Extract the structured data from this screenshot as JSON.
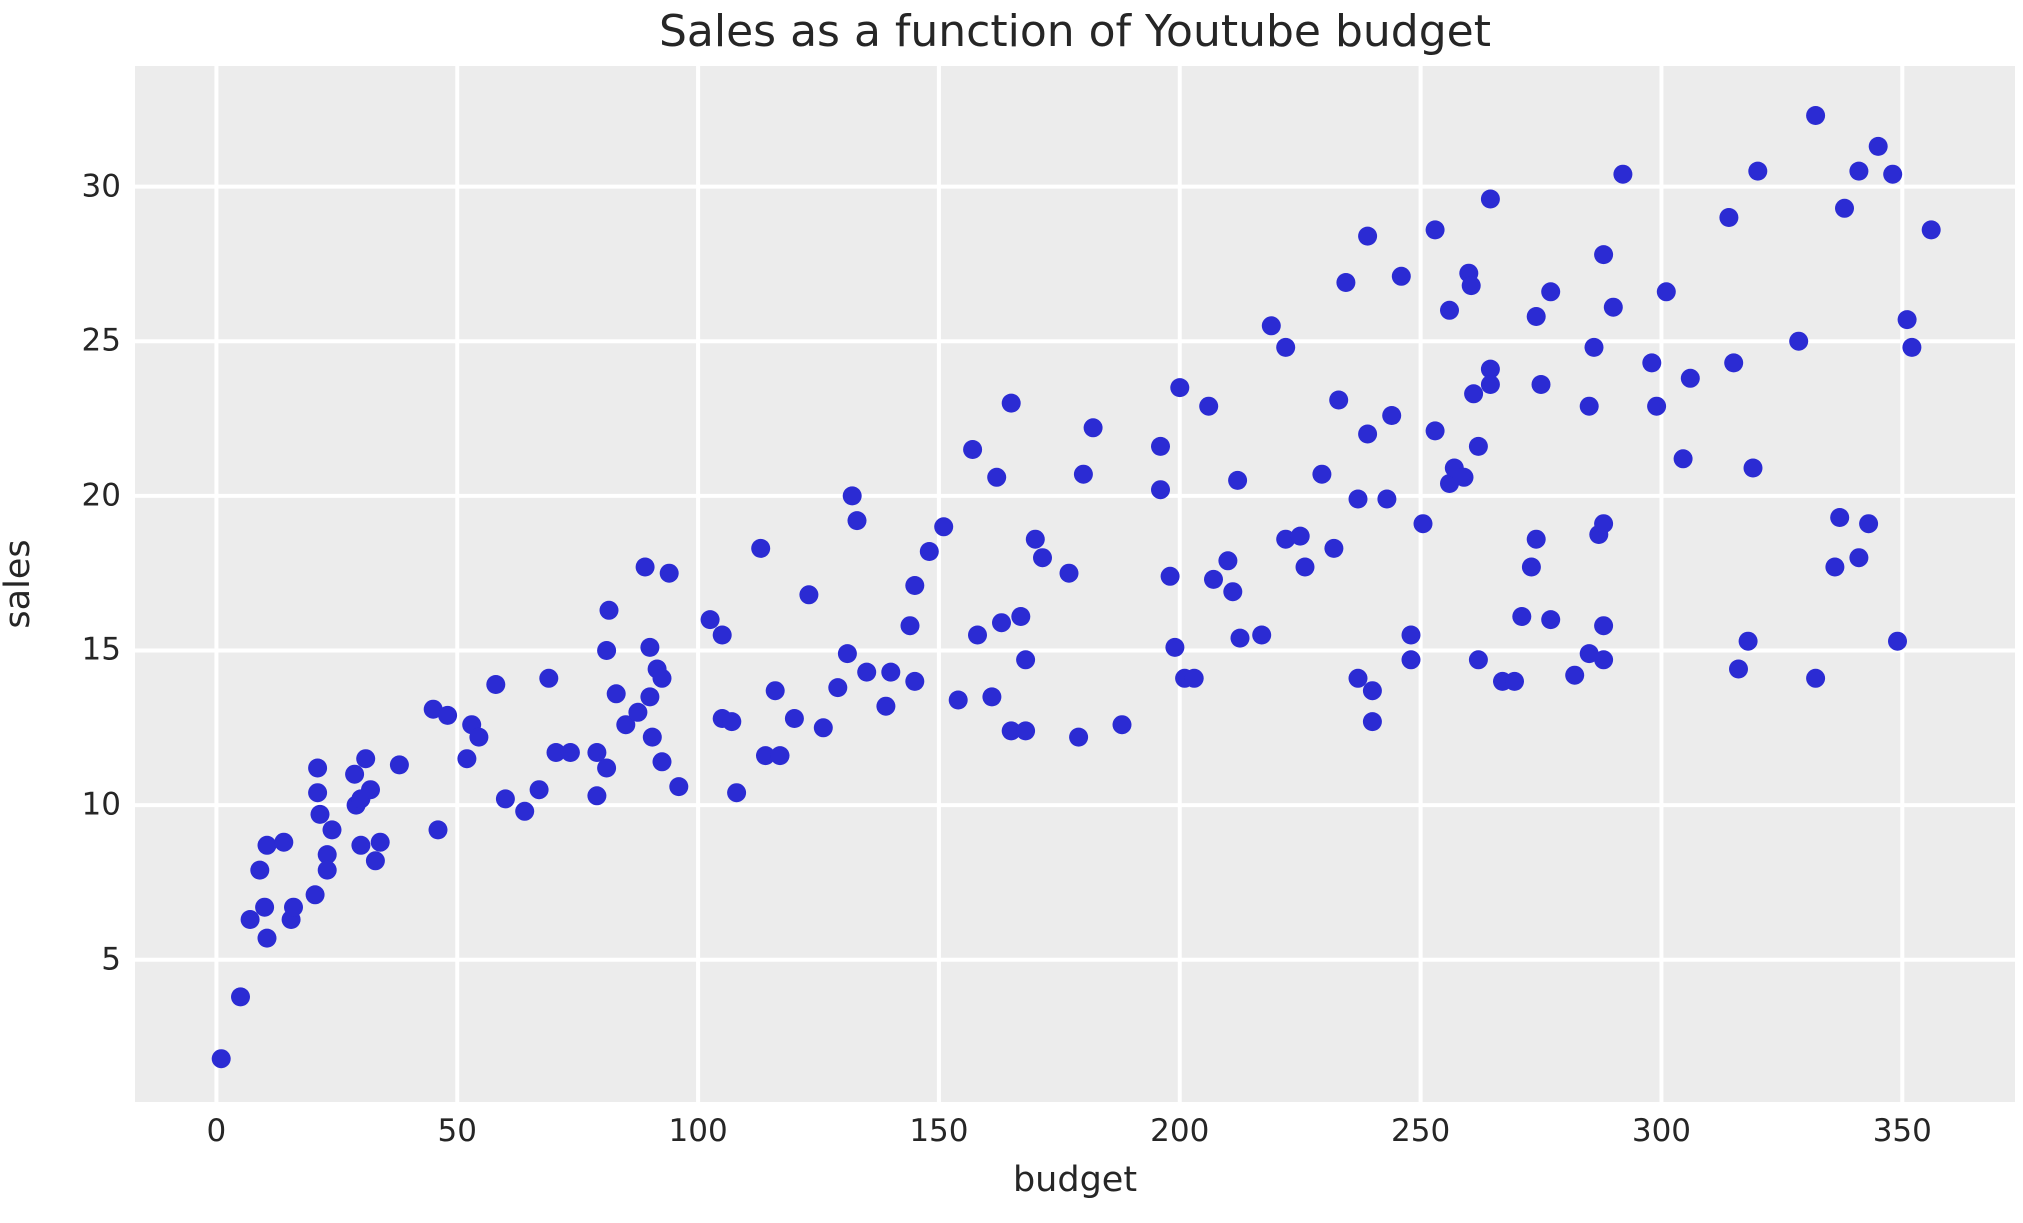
{
  "title": "Sales as a function of Youtube budget",
  "colors": {
    "plot_background": "#ececec",
    "gridline": "#ffffff",
    "marker": "#2b2bd3",
    "text": "#262626",
    "figure_background": "#ffffff"
  },
  "chart_data": {
    "type": "scatter",
    "title": "Sales as a function of Youtube budget",
    "xlabel": "budget",
    "ylabel": "sales",
    "xlim": [
      -16.9,
      373.4
    ],
    "ylim": [
      0.4,
      33.9
    ],
    "xticks": [
      0,
      50,
      100,
      150,
      200,
      250,
      300,
      350
    ],
    "yticks": [
      5,
      10,
      15,
      20,
      25,
      30
    ],
    "grid": true,
    "legend_position": "none",
    "marker_color": "#2b2bd3",
    "marker_radius_px": 9.5,
    "points": [
      [
        1,
        1.8
      ],
      [
        5,
        3.8
      ],
      [
        7,
        6.3
      ],
      [
        9,
        7.9
      ],
      [
        10,
        6.7
      ],
      [
        10.5,
        5.7
      ],
      [
        10.5,
        8.7
      ],
      [
        14,
        8.8
      ],
      [
        15.5,
        6.3
      ],
      [
        16,
        6.7
      ],
      [
        20.5,
        7.1
      ],
      [
        21,
        10.4
      ],
      [
        21,
        11.2
      ],
      [
        21.5,
        9.7
      ],
      [
        23,
        8.4
      ],
      [
        23,
        7.9
      ],
      [
        24,
        9.2
      ],
      [
        28.7,
        11
      ],
      [
        29,
        10
      ],
      [
        30,
        10.2
      ],
      [
        30,
        8.7
      ],
      [
        31,
        11.5
      ],
      [
        32,
        10.5
      ],
      [
        33,
        8.2
      ],
      [
        34,
        8.8
      ],
      [
        38,
        11.3
      ],
      [
        45,
        13.1
      ],
      [
        46,
        9.2
      ],
      [
        48,
        12.9
      ],
      [
        52,
        11.5
      ],
      [
        53,
        12.6
      ],
      [
        54.5,
        12.2
      ],
      [
        58,
        13.9
      ],
      [
        60,
        10.2
      ],
      [
        64,
        9.8
      ],
      [
        67,
        10.5
      ],
      [
        69,
        14.1
      ],
      [
        70.5,
        11.7
      ],
      [
        73.5,
        11.7
      ],
      [
        79,
        11.7
      ],
      [
        79,
        10.3
      ],
      [
        81,
        11.2
      ],
      [
        81,
        15
      ],
      [
        81.5,
        16.3
      ],
      [
        83,
        13.6
      ],
      [
        85,
        12.6
      ],
      [
        87.5,
        13
      ],
      [
        89,
        17.7
      ],
      [
        90,
        15.1
      ],
      [
        90,
        13.5
      ],
      [
        90.5,
        12.2
      ],
      [
        91.5,
        14.4
      ],
      [
        92.5,
        14.1
      ],
      [
        92.5,
        11.4
      ],
      [
        94,
        17.5
      ],
      [
        96,
        10.6
      ],
      [
        102.5,
        16
      ],
      [
        105,
        15.5
      ],
      [
        105,
        12.8
      ],
      [
        107,
        12.7
      ],
      [
        108,
        10.4
      ],
      [
        113,
        18.3
      ],
      [
        114,
        11.6
      ],
      [
        116,
        13.7
      ],
      [
        117,
        11.6
      ],
      [
        120,
        12.8
      ],
      [
        123,
        16.8
      ],
      [
        126,
        12.5
      ],
      [
        129,
        13.8
      ],
      [
        131,
        14.9
      ],
      [
        132,
        20
      ],
      [
        133,
        19.2
      ],
      [
        135,
        14.3
      ],
      [
        139,
        13.2
      ],
      [
        140,
        14.3
      ],
      [
        144,
        15.8
      ],
      [
        145,
        17.1
      ],
      [
        145,
        14
      ],
      [
        148,
        18.2
      ],
      [
        151,
        19
      ],
      [
        154,
        13.4
      ],
      [
        157,
        21.5
      ],
      [
        158,
        15.5
      ],
      [
        161,
        13.5
      ],
      [
        162,
        20.6
      ],
      [
        163,
        15.9
      ],
      [
        165,
        23
      ],
      [
        165,
        12.4
      ],
      [
        167,
        16.1
      ],
      [
        168,
        14.7
      ],
      [
        168,
        12.4
      ],
      [
        170,
        18.6
      ],
      [
        171.5,
        18
      ],
      [
        177,
        17.5
      ],
      [
        179,
        12.2
      ],
      [
        180,
        20.7
      ],
      [
        182,
        22.2
      ],
      [
        188,
        12.6
      ],
      [
        196,
        21.6
      ],
      [
        196,
        20.2
      ],
      [
        198,
        17.4
      ],
      [
        199,
        15.1
      ],
      [
        200,
        23.5
      ],
      [
        201,
        14.1
      ],
      [
        203,
        14.1
      ],
      [
        206,
        22.9
      ],
      [
        207,
        17.3
      ],
      [
        210,
        17.9
      ],
      [
        211,
        16.9
      ],
      [
        212,
        20.5
      ],
      [
        212.5,
        15.4
      ],
      [
        217,
        15.5
      ],
      [
        219,
        25.5
      ],
      [
        222,
        24.8
      ],
      [
        222,
        18.6
      ],
      [
        225,
        18.7
      ],
      [
        226,
        17.7
      ],
      [
        229.5,
        20.7
      ],
      [
        232,
        18.3
      ],
      [
        233,
        23.1
      ],
      [
        234.5,
        26.9
      ],
      [
        237,
        19.9
      ],
      [
        237,
        14.1
      ],
      [
        239,
        28.4
      ],
      [
        239,
        22
      ],
      [
        240,
        13.7
      ],
      [
        240,
        12.7
      ],
      [
        243,
        19.9
      ],
      [
        244,
        22.6
      ],
      [
        246,
        27.1
      ],
      [
        248,
        15.5
      ],
      [
        248,
        14.7
      ],
      [
        250.5,
        19.1
      ],
      [
        253,
        28.6
      ],
      [
        253,
        22.1
      ],
      [
        256,
        26
      ],
      [
        256,
        20.4
      ],
      [
        257,
        20.9
      ],
      [
        259,
        20.6
      ],
      [
        260,
        27.2
      ],
      [
        260.5,
        26.8
      ],
      [
        261,
        23.3
      ],
      [
        262,
        21.6
      ],
      [
        262,
        14.7
      ],
      [
        264.5,
        29.6
      ],
      [
        264.5,
        24.1
      ],
      [
        264.5,
        23.6
      ],
      [
        267,
        14
      ],
      [
        269.5,
        14
      ],
      [
        271,
        16.1
      ],
      [
        273,
        17.7
      ],
      [
        274,
        25.8
      ],
      [
        274,
        18.6
      ],
      [
        275,
        23.6
      ],
      [
        277,
        26.6
      ],
      [
        277,
        16
      ],
      [
        282,
        14.2
      ],
      [
        285,
        22.9
      ],
      [
        285,
        14.9
      ],
      [
        286,
        24.8
      ],
      [
        287,
        18.75
      ],
      [
        288,
        27.8
      ],
      [
        288,
        19.1
      ],
      [
        288,
        15.8
      ],
      [
        288,
        14.7
      ],
      [
        290,
        26.1
      ],
      [
        292,
        30.4
      ],
      [
        298,
        24.3
      ],
      [
        299,
        22.9
      ],
      [
        301,
        26.6
      ],
      [
        304.5,
        21.2
      ],
      [
        306,
        23.8
      ],
      [
        314,
        29
      ],
      [
        315,
        24.3
      ],
      [
        316,
        14.4
      ],
      [
        318,
        15.3
      ],
      [
        319,
        20.9
      ],
      [
        320,
        30.5
      ],
      [
        328.5,
        25
      ],
      [
        332,
        32.3
      ],
      [
        332,
        14.1
      ],
      [
        336,
        17.7
      ],
      [
        337,
        19.3
      ],
      [
        338,
        29.3
      ],
      [
        341,
        30.5
      ],
      [
        341,
        18
      ],
      [
        343,
        19.1
      ],
      [
        345,
        31.3
      ],
      [
        348,
        30.4
      ],
      [
        349,
        15.3
      ],
      [
        351,
        25.7
      ],
      [
        352,
        24.8
      ],
      [
        356,
        28.6
      ]
    ]
  }
}
